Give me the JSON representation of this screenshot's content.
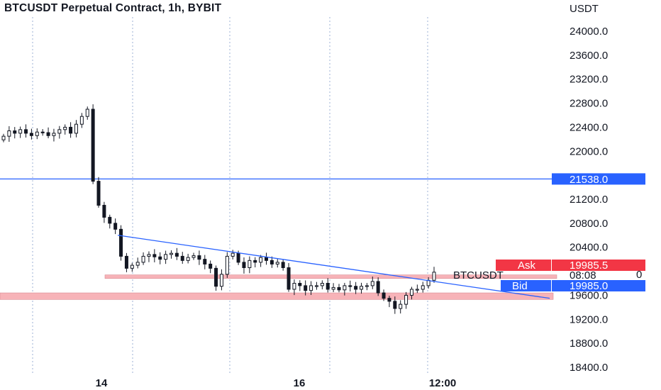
{
  "title": "BTCUSDT Perpetual Contract, 1h, BYBIT",
  "currency": "USDT",
  "colors": {
    "accent_line": "#2962ff",
    "ask": "#f23645",
    "bid": "#2962ff",
    "zone": "#f7b3b8",
    "candle": "#131722",
    "grid": "#9db2d6"
  },
  "price_axis": {
    "ticks": [
      24000.0,
      23600.0,
      23200.0,
      22800.0,
      22400.0,
      22000.0,
      21200.0,
      20800.0,
      20400.0,
      19600.0,
      19200.0,
      18800.0,
      18400.0
    ],
    "tick_labels": [
      "24000.0",
      "23600.0",
      "23200.0",
      "22800.0",
      "22400.0",
      "22000.0",
      "21200.0",
      "20800.0",
      "20400.0",
      "19600.0",
      "19200.0",
      "18800.0",
      "18400.0"
    ]
  },
  "time_axis": {
    "labels": [
      "14",
      "16",
      "12:00"
    ]
  },
  "horizontal_line": {
    "price": 21538.0,
    "label": "21538.0"
  },
  "quote": {
    "ask_label": "Ask",
    "ask_price": "19985.5",
    "symbol": "BTCUSDT",
    "countdown": "08:08",
    "countdown_suffix": "0",
    "bid_label": "Bid",
    "bid_price": "19985.0"
  },
  "chart_data": {
    "type": "candlestick",
    "title": "BTCUSDT Perpetual Contract, 1h, BYBIT",
    "ylabel": "USDT",
    "ylim": [
      18300,
      24400
    ],
    "interval": "1h",
    "x_tick_labels": [
      "14",
      "16",
      "12:00"
    ],
    "close_path": [
      22250,
      22340,
      22300,
      22360,
      22300,
      22260,
      22320,
      22310,
      22260,
      22300,
      22360,
      22400,
      22300,
      22450,
      22580,
      22700,
      21500,
      21100,
      20900,
      20800,
      20700,
      20250,
      20050,
      20100,
      20150,
      20250,
      20280,
      20240,
      20200,
      20280,
      20300,
      20250,
      20180,
      20230,
      20260,
      20200,
      20120,
      20050,
      19750,
      19950,
      20250,
      20300,
      20150,
      20060,
      20180,
      20150,
      20230,
      20180,
      20120,
      20150,
      20060,
      19700,
      19800,
      19760,
      19680,
      19760,
      19760,
      19800,
      19700,
      19730,
      19690,
      19760,
      19750,
      19700,
      19750,
      19760,
      19830,
      19640,
      19550,
      19500,
      19380,
      19450,
      19600,
      19700,
      19700,
      19760,
      19850,
      19985
    ],
    "horizontal_levels": [
      21538.0
    ],
    "trendline": {
      "from_price": 20600,
      "to_price": 19550
    },
    "support_zones": [
      {
        "from": 19880,
        "to": 19940
      },
      {
        "from": 19530,
        "to": 19640
      }
    ],
    "last_price": 19985.5,
    "bid": 19985.0,
    "ask": 19985.5
  }
}
